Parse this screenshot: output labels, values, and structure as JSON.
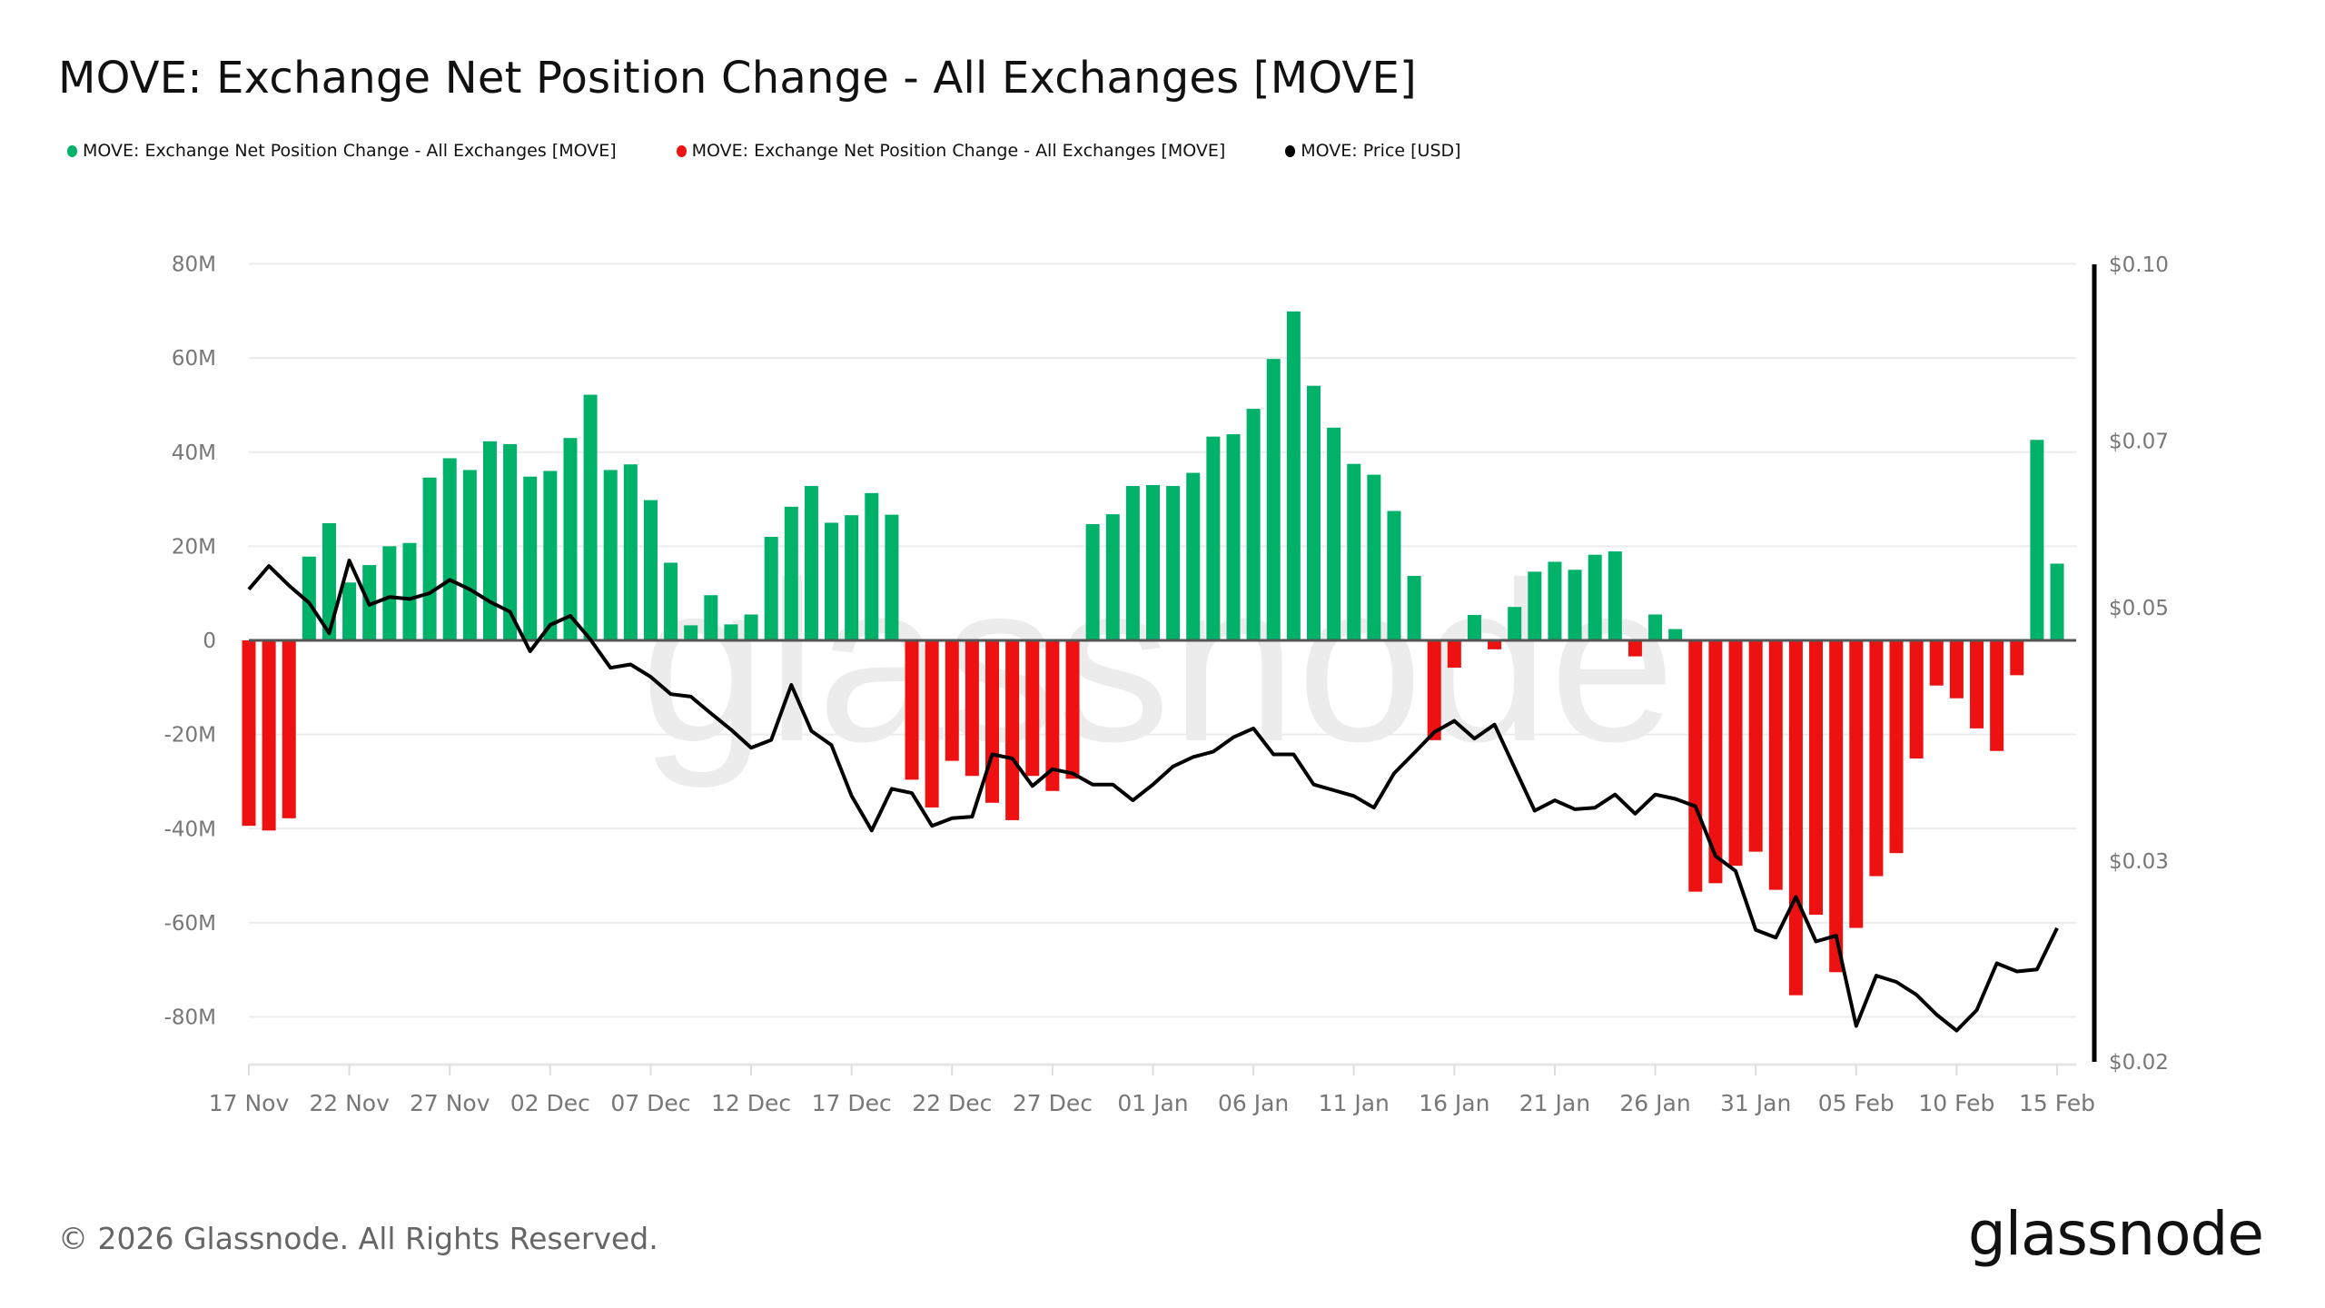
{
  "title": "MOVE: Exchange Net Position Change - All Exchanges [MOVE]",
  "legend": [
    {
      "label": "MOVE: Exchange Net Position Change - All Exchanges [MOVE]",
      "color": "#00b16a"
    },
    {
      "label": "MOVE: Exchange Net Position Change - All Exchanges [MOVE]",
      "color": "#ee1111"
    },
    {
      "label": "MOVE: Price [USD]",
      "color": "#000000"
    }
  ],
  "footer": "© 2026 Glassnode. All Rights Reserved.",
  "logo": "glassnode",
  "watermark": "glassnode",
  "chart_data": {
    "type": "bar",
    "title": "MOVE: Exchange Net Position Change - All Exchanges [MOVE]",
    "grid": true,
    "legend_position": "top-left",
    "x_start": "2025-11-17",
    "x_end": "2026-02-15",
    "x_tick_labels": [
      "17 Nov",
      "22 Nov",
      "27 Nov",
      "02 Dec",
      "07 Dec",
      "12 Dec",
      "17 Dec",
      "22 Dec",
      "27 Dec",
      "01 Jan",
      "06 Jan",
      "11 Jan",
      "16 Jan",
      "21 Jan",
      "26 Jan",
      "31 Jan",
      "05 Feb",
      "10 Feb",
      "15 Feb"
    ],
    "y_left": {
      "ylim": [
        -90,
        85
      ],
      "unit": "M",
      "tick_labels": [
        "80M",
        "60M",
        "40M",
        "20M",
        "0",
        "-20M",
        "-40M",
        "-60M",
        "-80M"
      ],
      "ticks": [
        80,
        60,
        40,
        20,
        0,
        -20,
        -40,
        -60,
        -80
      ]
    },
    "y_right": {
      "scale": "log",
      "ylim": [
        0.02,
        0.1
      ],
      "tick_labels": [
        "$0.10",
        "$0.07",
        "$0.05",
        "$0.03",
        "$0.02"
      ],
      "ticks": [
        0.1,
        0.07,
        0.05,
        0.03,
        0.02
      ]
    },
    "positive_color": "#00b16a",
    "negative_color": "#ee1111",
    "price_color": "#000000",
    "series": [
      {
        "name": "MOVE: Exchange Net Position Change - All Exchanges [MOVE]",
        "type": "bar",
        "axis": "left",
        "unit": "M",
        "values": [
          -39.4,
          -40.4,
          -37.8,
          17.8,
          24.9,
          12.3,
          16,
          20,
          20.7,
          34.6,
          38.7,
          36.2,
          42.3,
          41.7,
          34.8,
          36,
          43,
          52.2,
          36.2,
          37.4,
          29.8,
          16.5,
          3.2,
          9.6,
          3.4,
          5.5,
          22,
          28.4,
          32.8,
          25,
          26.6,
          31.3,
          26.7,
          -29.6,
          -35.5,
          -25.6,
          -28.8,
          -34.5,
          -38.2,
          -28.8,
          -32,
          -29.4,
          24.7,
          26.8,
          32.8,
          33,
          32.8,
          35.6,
          43.3,
          43.8,
          49.2,
          59.8,
          69.9,
          54.1,
          45.2,
          37.5,
          35.2,
          27.5,
          13.7,
          -21.2,
          -5.8,
          5.4,
          -1.9,
          7.1,
          14.6,
          16.7,
          15,
          18.2,
          18.9,
          -3.4,
          5.5,
          2.4,
          -53.4,
          -51.6,
          -47.9,
          -44.9,
          -53,
          -75.4,
          -58.3,
          -70.5,
          -61.1,
          -50.1,
          -45.2,
          -25.1,
          -9.6,
          -12.3,
          -18.7,
          -23.5,
          -7.4,
          42.6,
          16.3
        ]
      },
      {
        "name": "MOVE: Price [USD]",
        "type": "line",
        "axis": "right",
        "values": [
          0.0519,
          0.0544,
          0.0523,
          0.0505,
          0.0475,
          0.055,
          0.0503,
          0.0511,
          0.0509,
          0.0515,
          0.0529,
          0.0519,
          0.0506,
          0.0496,
          0.0458,
          0.0483,
          0.0492,
          0.0469,
          0.0443,
          0.0446,
          0.0435,
          0.042,
          0.0418,
          0.0404,
          0.0391,
          0.0377,
          0.0383,
          0.0428,
          0.039,
          0.0379,
          0.0342,
          0.0319,
          0.0347,
          0.0344,
          0.0322,
          0.0327,
          0.0328,
          0.0372,
          0.0369,
          0.0349,
          0.0361,
          0.0358,
          0.035,
          0.035,
          0.0339,
          0.035,
          0.0363,
          0.037,
          0.0374,
          0.0385,
          0.0392,
          0.0372,
          0.0372,
          0.035,
          0.0346,
          0.0342,
          0.0334,
          0.0358,
          0.0373,
          0.0389,
          0.0398,
          0.0384,
          0.0395,
          0.0362,
          0.0332,
          0.0339,
          0.0333,
          0.0334,
          0.0343,
          0.033,
          0.0343,
          0.034,
          0.0335,
          0.0303,
          0.0294,
          0.0261,
          0.0257,
          0.0279,
          0.0255,
          0.0258,
          0.0215,
          0.0238,
          0.0235,
          0.0229,
          0.022,
          0.0213,
          0.0222,
          0.0244,
          0.024,
          0.0241,
          0.0262
        ]
      }
    ]
  }
}
